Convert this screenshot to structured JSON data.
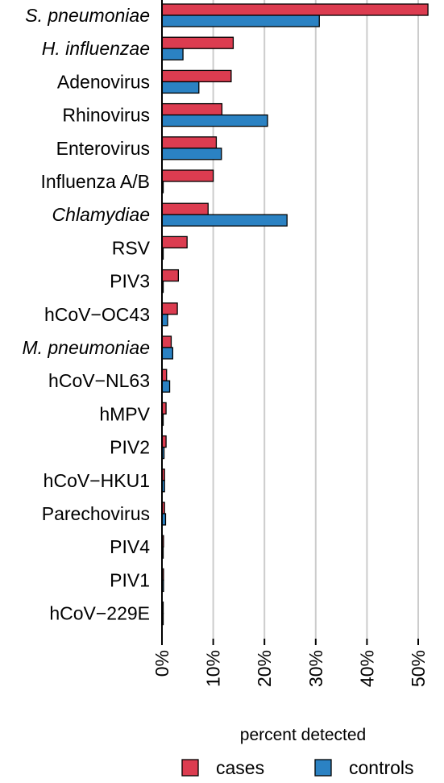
{
  "chart_data": {
    "type": "bar",
    "orientation": "horizontal",
    "categories": [
      "S. pneumoniae",
      "H. influenzae",
      "Adenovirus",
      "Rhinovirus",
      "Enterovirus",
      "Influenza A/B",
      "Chlamydiae",
      "RSV",
      "PIV3",
      "hCoV−OC43",
      "M. pneumoniae",
      "hCoV−NL63",
      "hMPV",
      "PIV2",
      "hCoV−HKU1",
      "Parechovirus",
      "PIV4",
      "PIV1",
      "hCoV−229E"
    ],
    "italic_categories": [
      "S. pneumoniae",
      "H. influenzae",
      "Chlamydiae",
      "M. pneumoniae"
    ],
    "series": [
      {
        "name": "cases",
        "color": "#dc3c50",
        "values": [
          51.9,
          13.9,
          13.5,
          11.7,
          10.6,
          10.0,
          9.0,
          4.9,
          3.2,
          3.0,
          1.8,
          0.9,
          0.8,
          0.8,
          0.5,
          0.5,
          0.3,
          0.3,
          0.1
        ]
      },
      {
        "name": "controls",
        "color": "#2b82c3",
        "values": [
          30.7,
          4.1,
          7.2,
          20.6,
          11.6,
          0.2,
          24.4,
          0.2,
          0.2,
          1.1,
          2.1,
          1.5,
          0.1,
          0.4,
          0.5,
          0.7,
          0.1,
          0.3,
          0.1
        ]
      }
    ],
    "x_ticks": [
      "0%",
      "10%",
      "20%",
      "30%",
      "40%",
      "50%"
    ],
    "x_tick_values": [
      0,
      10,
      20,
      30,
      40,
      50
    ],
    "xlim": [
      0,
      54
    ],
    "xlabel": "percent detected",
    "grid": "vertical",
    "legend": "bottom"
  }
}
